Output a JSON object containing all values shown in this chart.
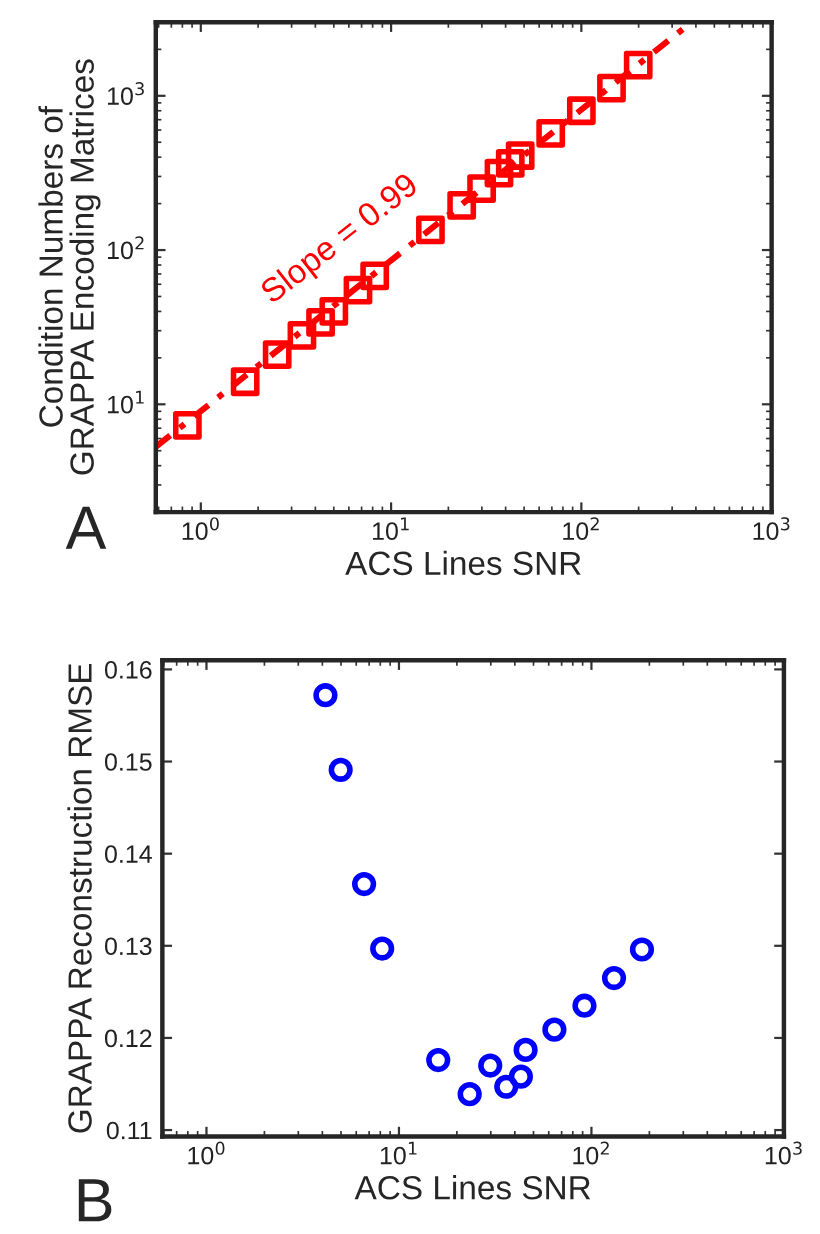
{
  "chart_data": [
    {
      "type": "scatter",
      "xlabel": "ACS Lines SNR",
      "ylabel": "Condition Numbers of\nGRAPPA Encoding Matrices",
      "log": "xy",
      "xlim": [
        0.58,
        1000
      ],
      "ylim": [
        2,
        3000
      ],
      "xticks": [
        {
          "value": 1,
          "label": "10$^{0}$"
        },
        {
          "value": 10,
          "label": "10$^{1}$"
        },
        {
          "value": 100,
          "label": "10$^{2}$"
        },
        {
          "value": 1000,
          "label": "10$^{3}$"
        }
      ],
      "yticks": [
        {
          "value": 10,
          "label": "10$^{1}$"
        },
        {
          "value": 100,
          "label": "10$^{2}$"
        },
        {
          "value": 1000,
          "label": "10$^{3}$"
        }
      ],
      "grid": false,
      "legend": false,
      "series": [
        {
          "marker": "square",
          "color": "#ff0000",
          "x": [
            0.85,
            1.71,
            2.52,
            3.4,
            4.26,
            5.0,
            6.7,
            8.2,
            16.1,
            23.5,
            29.9,
            36.9,
            42.3,
            47.7,
            69,
            100,
            144,
            199
          ],
          "values": [
            7.3,
            14,
            21,
            28,
            34,
            40,
            55,
            68,
            135,
            195,
            250,
            315,
            365,
            410,
            570,
            800,
            1120,
            1580
          ]
        },
        {
          "type": "line",
          "line_style": "dashed",
          "marker": "none",
          "color": "#ff0000",
          "x": [
            0.58,
            380
          ],
          "values": [
            5.3,
            3000
          ]
        }
      ],
      "annotations": [
        "Slope = 0.99",
        "A"
      ]
    },
    {
      "type": "scatter",
      "xlabel": "ACS Lines SNR",
      "ylabel": "GRAPPA Reconstruction RMSE",
      "log": "x",
      "xlim": [
        0.59,
        1000
      ],
      "ylim": [
        0.1093,
        0.161
      ],
      "xticks": [
        {
          "value": 1,
          "label": "10$^{0}$"
        },
        {
          "value": 10,
          "label": "10$^{1}$"
        },
        {
          "value": 100,
          "label": "10$^{2}$"
        },
        {
          "value": 1000,
          "label": "10$^{3}$"
        }
      ],
      "yticks": [
        {
          "value": 0.11,
          "label": "0.11"
        },
        {
          "value": 0.12,
          "label": "0.12"
        },
        {
          "value": 0.13,
          "label": "0.13"
        },
        {
          "value": 0.14,
          "label": "0.14"
        },
        {
          "value": 0.15,
          "label": "0.15"
        },
        {
          "value": 0.16,
          "label": "0.16"
        }
      ],
      "grid": false,
      "legend": false,
      "series": [
        {
          "marker": "circle",
          "color": "#0000ff",
          "x": [
            4.15,
            4.98,
            6.59,
            8.18,
            16.0,
            23.3,
            29.8,
            36.1,
            43.0,
            45.5,
            64.2,
            92,
            131,
            183
          ],
          "values": [
            0.1572,
            0.1491,
            0.1367,
            0.1297,
            0.1176,
            0.1139,
            0.117,
            0.1147,
            0.1158,
            0.1187,
            0.1209,
            0.1235,
            0.1265,
            0.1296
          ]
        }
      ],
      "annotations": [
        "B"
      ]
    }
  ]
}
